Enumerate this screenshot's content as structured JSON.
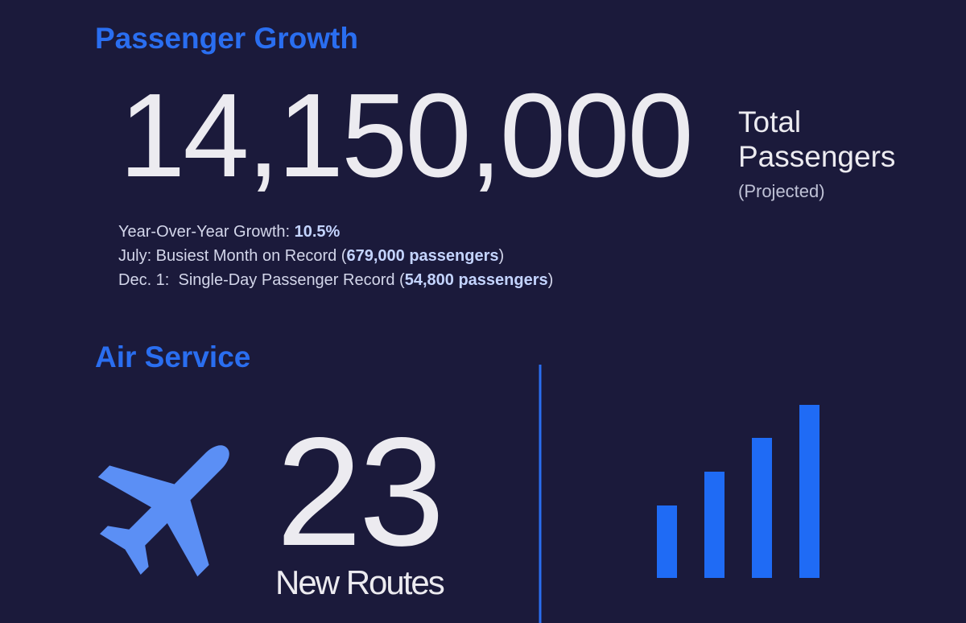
{
  "passenger_growth": {
    "title": "Passenger Growth",
    "total": "14,150,000",
    "total_label": "Total",
    "total_label_2": "Passengers",
    "total_note": "(Projected)",
    "facts": [
      {
        "lead": "Year-Over-Year Growth: ",
        "bold": "10.5%"
      },
      {
        "lead": "July: Busiest Month on Record (",
        "bold": "679,000 passengers",
        "tail": ")"
      },
      {
        "lead": "Dec. 1:  Single-Day Passenger Record (",
        "bold": "54,800 passengers",
        "tail": ")"
      }
    ]
  },
  "air_service": {
    "title": "Air Service",
    "count": "23",
    "count_label": "New Routes"
  }
}
